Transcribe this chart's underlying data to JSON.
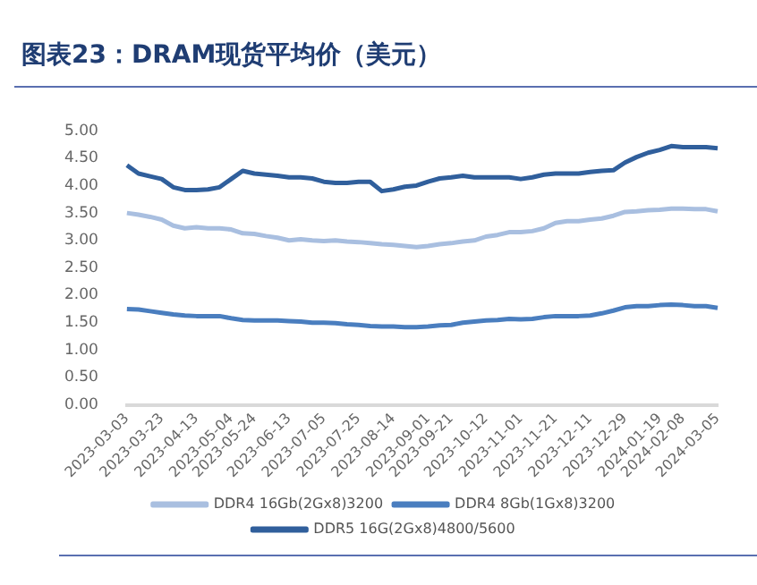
{
  "chart_data": {
    "type": "line",
    "title": "图表23：DRAM现货平均价（美元）",
    "categories": [
      "2023-03-03",
      null,
      null,
      "2023-03-23",
      null,
      null,
      "2023-04-13",
      null,
      null,
      "2023-05-04",
      null,
      "2023-05-24",
      null,
      null,
      "2023-06-13",
      null,
      null,
      "2023-07-05",
      null,
      null,
      "2023-07-25",
      null,
      null,
      "2023-08-14",
      null,
      null,
      "2023-09-01",
      null,
      "2023-09-21",
      null,
      null,
      "2023-10-12",
      null,
      null,
      "2023-11-01",
      null,
      null,
      "2023-11-21",
      null,
      null,
      "2023-12-11",
      null,
      null,
      "2023-12-29",
      null,
      null,
      "2024-01-19",
      null,
      "2024-02-08",
      null,
      null,
      "2024-03-05"
    ],
    "series": [
      {
        "name": "DDR4 16Gb(2Gx8)3200",
        "color": "#a9bfe0",
        "values": [
          3.5,
          3.47,
          3.43,
          3.38,
          3.27,
          3.22,
          3.24,
          3.22,
          3.22,
          3.2,
          3.13,
          3.12,
          3.08,
          3.05,
          3.0,
          3.02,
          3.0,
          2.99,
          3.0,
          2.98,
          2.97,
          2.95,
          2.93,
          2.92,
          2.9,
          2.88,
          2.9,
          2.93,
          2.95,
          2.98,
          3.0,
          3.07,
          3.1,
          3.15,
          3.15,
          3.17,
          3.22,
          3.32,
          3.35,
          3.35,
          3.38,
          3.4,
          3.45,
          3.52,
          3.53,
          3.55,
          3.56,
          3.58,
          3.58,
          3.57,
          3.57,
          3.53
        ]
      },
      {
        "name": "DDR4 8Gb(1Gx8)3200",
        "color": "#4a7ebf",
        "values": [
          1.75,
          1.74,
          1.71,
          1.68,
          1.65,
          1.63,
          1.62,
          1.62,
          1.62,
          1.58,
          1.55,
          1.54,
          1.54,
          1.54,
          1.53,
          1.52,
          1.5,
          1.5,
          1.49,
          1.47,
          1.46,
          1.44,
          1.43,
          1.43,
          1.42,
          1.42,
          1.43,
          1.45,
          1.46,
          1.5,
          1.52,
          1.54,
          1.55,
          1.57,
          1.56,
          1.57,
          1.6,
          1.62,
          1.62,
          1.62,
          1.63,
          1.67,
          1.72,
          1.78,
          1.8,
          1.8,
          1.82,
          1.83,
          1.82,
          1.8,
          1.8,
          1.77
        ]
      },
      {
        "name": "DDR5 16G(2Gx8)4800/5600",
        "color": "#305f9c",
        "values": [
          4.37,
          4.22,
          4.17,
          4.12,
          3.97,
          3.92,
          3.92,
          3.93,
          3.97,
          4.12,
          4.27,
          4.22,
          4.2,
          4.18,
          4.15,
          4.15,
          4.13,
          4.07,
          4.05,
          4.05,
          4.07,
          4.07,
          3.9,
          3.93,
          3.98,
          4.0,
          4.07,
          4.13,
          4.15,
          4.18,
          4.15,
          4.15,
          4.15,
          4.15,
          4.12,
          4.15,
          4.2,
          4.22,
          4.22,
          4.22,
          4.25,
          4.27,
          4.28,
          4.42,
          4.52,
          4.6,
          4.65,
          4.72,
          4.7,
          4.7,
          4.7,
          4.68
        ]
      }
    ],
    "ylim": [
      0,
      5
    ],
    "yticks": [
      {
        "value": 0,
        "label": "0.00"
      },
      {
        "value": 0.5,
        "label": "0.50"
      },
      {
        "value": 1,
        "label": "1.00"
      },
      {
        "value": 1.5,
        "label": "1.50"
      },
      {
        "value": 2,
        "label": "2.00"
      },
      {
        "value": 2.5,
        "label": "2.50"
      },
      {
        "value": 3,
        "label": "3.00"
      },
      {
        "value": 3.5,
        "label": "3.50"
      },
      {
        "value": 4,
        "label": "4.00"
      },
      {
        "value": 4.5,
        "label": "4.50"
      },
      {
        "value": 5,
        "label": "5.00"
      }
    ],
    "grid": false,
    "legend": "bottom",
    "marker": "none",
    "line_style": "solid"
  }
}
